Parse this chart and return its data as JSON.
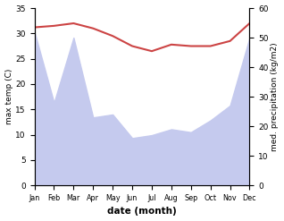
{
  "months": [
    "Jan",
    "Feb",
    "Mar",
    "Apr",
    "May",
    "Jun",
    "Jul",
    "Aug",
    "Sep",
    "Oct",
    "Nov",
    "Dec"
  ],
  "temp": [
    31.2,
    31.5,
    32.0,
    31.0,
    29.5,
    27.5,
    26.5,
    27.8,
    27.5,
    27.5,
    28.5,
    32.0
  ],
  "precip": [
    52.0,
    28.0,
    50.0,
    23.0,
    24.0,
    16.0,
    17.0,
    19.0,
    18.0,
    22.0,
    27.0,
    50.0
  ],
  "temp_color": "#cc4444",
  "precip_fill_color": "#c5caee",
  "bg_color": "#ffffff",
  "ylabel_left": "max temp (C)",
  "ylabel_right": "med. precipitation (kg/m2)",
  "xlabel": "date (month)",
  "ylim_left": [
    0,
    35
  ],
  "ylim_right": [
    0,
    60
  ],
  "yticks_left": [
    0,
    5,
    10,
    15,
    20,
    25,
    30,
    35
  ],
  "yticks_right": [
    0,
    10,
    20,
    30,
    40,
    50,
    60
  ]
}
